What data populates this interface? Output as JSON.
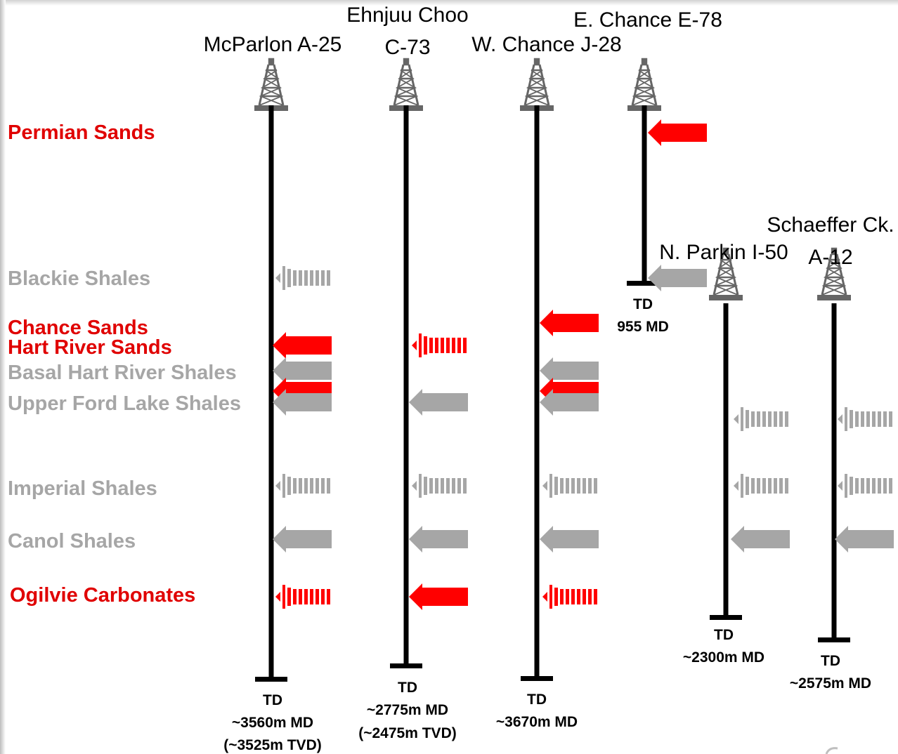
{
  "colors": {
    "reservoir": "#ff0000",
    "shale": "#a6a6a6",
    "well": "#000000",
    "derrick": "#666666"
  },
  "formations": [
    {
      "id": "permian",
      "label": "Permian Sands",
      "color": "#e00000"
    },
    {
      "id": "blackie",
      "label": "Blackie Shales",
      "color": "#a6a6a6"
    },
    {
      "id": "chance",
      "label": "Chance Sands",
      "color": "#e00000"
    },
    {
      "id": "hart",
      "label": "Hart River Sands",
      "color": "#e00000"
    },
    {
      "id": "basal",
      "label": "Basal Hart River Shales",
      "color": "#a6a6a6"
    },
    {
      "id": "upperford",
      "label": "Upper Ford Lake Shales",
      "color": "#a6a6a6"
    },
    {
      "id": "imperial",
      "label": "Imperial Shales",
      "color": "#a6a6a6"
    },
    {
      "id": "canol",
      "label": "Canol Shales",
      "color": "#a6a6a6"
    },
    {
      "id": "ogilvie",
      "label": "Ogilvie Carbonates",
      "color": "#e00000"
    }
  ],
  "wells": [
    {
      "id": "mcparlon",
      "name_lines": [
        "McParlon A-25"
      ],
      "td_lines": [
        "TD",
        "~3560m MD",
        "(~3525m TVD)"
      ]
    },
    {
      "id": "ehnjuu",
      "name_lines": [
        "Ehnjuu Choo",
        "C-73"
      ],
      "td_lines": [
        "TD",
        "~2775m MD",
        "(~2475m TVD)"
      ]
    },
    {
      "id": "wchance",
      "name_lines": [
        "W. Chance J-28"
      ],
      "td_lines": [
        "TD",
        "~3670m MD"
      ]
    },
    {
      "id": "echance",
      "name_lines": [
        "E. Chance E-78"
      ],
      "td_lines": [
        "TD",
        "955 MD"
      ]
    },
    {
      "id": "nparkin",
      "name_lines": [
        "N. Parkin I-50"
      ],
      "td_lines": [
        "TD",
        "~2300m MD"
      ]
    },
    {
      "id": "schaeffer",
      "name_lines": [
        "Schaeffer Ck.",
        "A-12"
      ],
      "td_lines": [
        "TD",
        "~2575m MD"
      ]
    }
  ],
  "arrows": [
    {
      "well": "echance",
      "formation": "permian",
      "type": "reservoir",
      "style": "solid"
    },
    {
      "well": "echance",
      "formation": "blackie",
      "type": "shale",
      "style": "solid"
    },
    {
      "well": "mcparlon",
      "formation": "blackie",
      "type": "shale",
      "style": "striped"
    },
    {
      "well": "mcparlon",
      "formation": "hart",
      "type": "reservoir",
      "style": "solid"
    },
    {
      "well": "mcparlon",
      "formation": "basal",
      "type": "shale",
      "style": "solid"
    },
    {
      "well": "mcparlon",
      "formation": "basal_red",
      "type": "reservoir",
      "style": "solid"
    },
    {
      "well": "mcparlon",
      "formation": "upperford",
      "type": "shale",
      "style": "solid"
    },
    {
      "well": "mcparlon",
      "formation": "imperial",
      "type": "shale",
      "style": "striped"
    },
    {
      "well": "mcparlon",
      "formation": "canol",
      "type": "shale",
      "style": "solid"
    },
    {
      "well": "mcparlon",
      "formation": "ogilvie",
      "type": "reservoir",
      "style": "striped"
    },
    {
      "well": "ehnjuu",
      "formation": "hart",
      "type": "reservoir",
      "style": "striped"
    },
    {
      "well": "ehnjuu",
      "formation": "upperford",
      "type": "shale",
      "style": "solid"
    },
    {
      "well": "ehnjuu",
      "formation": "imperial",
      "type": "shale",
      "style": "striped"
    },
    {
      "well": "ehnjuu",
      "formation": "canol",
      "type": "shale",
      "style": "solid"
    },
    {
      "well": "ehnjuu",
      "formation": "ogilvie",
      "type": "reservoir",
      "style": "solid"
    },
    {
      "well": "wchance",
      "formation": "chance",
      "type": "reservoir",
      "style": "solid"
    },
    {
      "well": "wchance",
      "formation": "basal",
      "type": "shale",
      "style": "solid"
    },
    {
      "well": "wchance",
      "formation": "basal_red",
      "type": "reservoir",
      "style": "solid"
    },
    {
      "well": "wchance",
      "formation": "upperford",
      "type": "shale",
      "style": "solid"
    },
    {
      "well": "wchance",
      "formation": "imperial",
      "type": "shale",
      "style": "striped"
    },
    {
      "well": "wchance",
      "formation": "canol",
      "type": "shale",
      "style": "solid"
    },
    {
      "well": "wchance",
      "formation": "ogilvie",
      "type": "reservoir",
      "style": "striped"
    },
    {
      "well": "nparkin",
      "formation": "upperford_low",
      "type": "shale",
      "style": "striped"
    },
    {
      "well": "nparkin",
      "formation": "imperial",
      "type": "shale",
      "style": "striped"
    },
    {
      "well": "nparkin",
      "formation": "canol",
      "type": "shale",
      "style": "solid"
    },
    {
      "well": "schaeffer",
      "formation": "upperford_low",
      "type": "shale",
      "style": "striped"
    },
    {
      "well": "schaeffer",
      "formation": "imperial",
      "type": "shale",
      "style": "striped"
    },
    {
      "well": "schaeffer",
      "formation": "canol",
      "type": "shale",
      "style": "solid"
    }
  ]
}
